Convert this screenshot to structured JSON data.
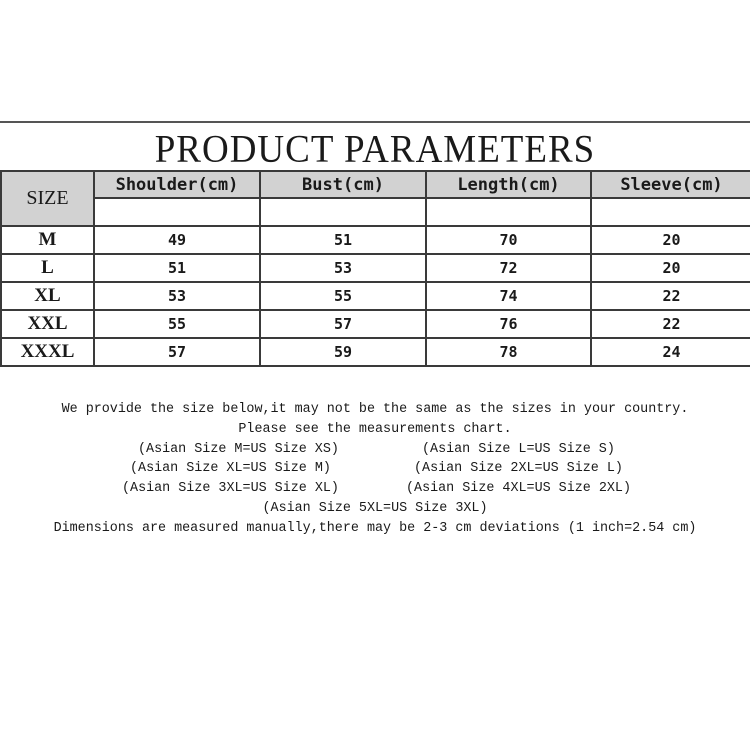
{
  "title": "PRODUCT PARAMETERS",
  "table": {
    "size_header": "SIZE",
    "columns": [
      "Shoulder(cm)",
      "Bust(cm)",
      "Length(cm)",
      "Sleeve(cm)"
    ],
    "rows": [
      {
        "size": "M",
        "values": [
          "49",
          "51",
          "70",
          "20"
        ]
      },
      {
        "size": "L",
        "values": [
          "51",
          "53",
          "72",
          "20"
        ]
      },
      {
        "size": "XL",
        "values": [
          "53",
          "55",
          "74",
          "22"
        ]
      },
      {
        "size": "XXL",
        "values": [
          "55",
          "57",
          "76",
          "22"
        ]
      },
      {
        "size": "XXXL",
        "values": [
          "57",
          "59",
          "78",
          "24"
        ]
      }
    ]
  },
  "notes": {
    "line1": "We provide the size below,it may not be the same as the sizes in your country.",
    "line2": "Please see the measurements chart.",
    "pairs": [
      [
        "(Asian Size M=US Size XS)",
        "(Asian Size L=US Size S)"
      ],
      [
        "(Asian Size XL=US Size M)",
        "(Asian Size 2XL=US Size L)"
      ],
      [
        "(Asian Size 3XL=US Size XL)",
        "(Asian Size 4XL=US Size 2XL)"
      ]
    ],
    "single": "(Asian Size 5XL=US Size 3XL)",
    "footer": "Dimensions are measured manually,there may be 2-3 cm deviations (1 inch=2.54 cm)"
  }
}
